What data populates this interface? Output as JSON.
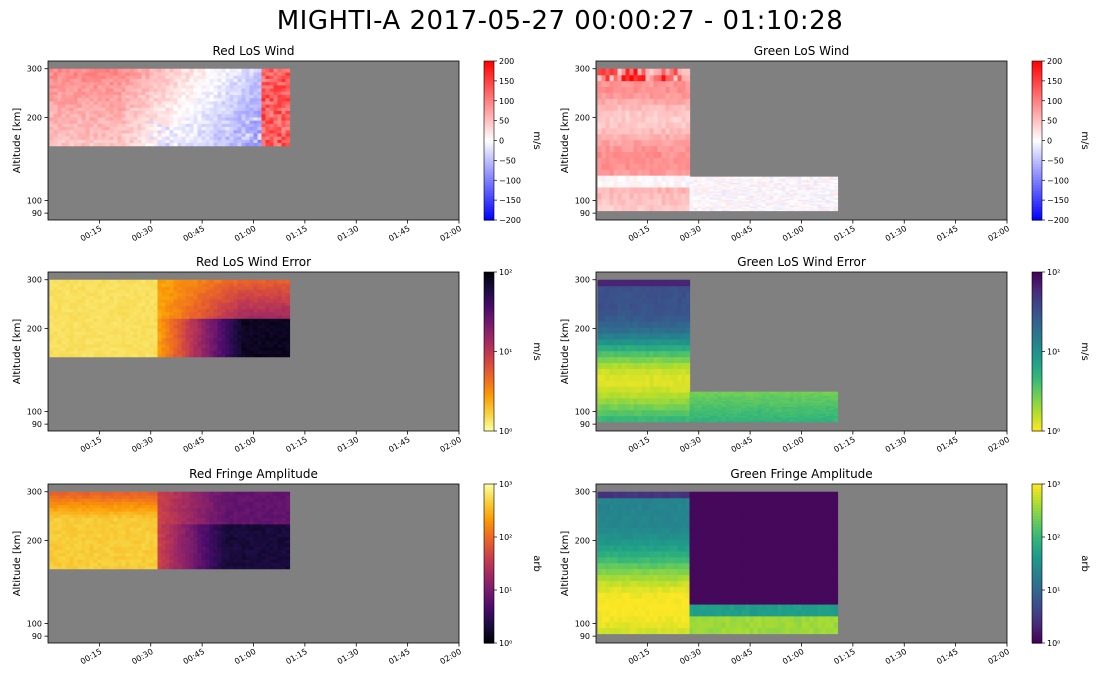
{
  "suptitle": "MIGHTI-A  2017-05-27 00:00:27 - 01:10:28",
  "chart_data": [
    {
      "type": "heatmap",
      "title": "Red LoS Wind",
      "ylabel": "Altitude [km]",
      "x_ticks": [
        "00:15",
        "00:30",
        "00:45",
        "01:00",
        "01:15",
        "01:30",
        "01:45",
        "02:00"
      ],
      "y_ticks": [
        "90",
        "100",
        "200",
        "300"
      ],
      "colorbar": {
        "cmap": "bwr",
        "scale": "linear",
        "label": "m/s",
        "ticks": [
          "200",
          "150",
          "100",
          "50",
          "0",
          "−50",
          "−100",
          "−150",
          "−200"
        ],
        "range": [
          -200,
          200
        ]
      },
      "x_range": [
        "00:00",
        "02:00"
      ],
      "y_range_km": [
        85,
        320
      ],
      "data_time_range": [
        "00:00:27",
        "01:10:28"
      ],
      "data_alt_range_km": [
        158,
        300
      ],
      "background_color": "#808080"
    },
    {
      "type": "heatmap",
      "title": "Green LoS Wind",
      "ylabel": "Altitude [km]",
      "x_ticks": [
        "00:15",
        "00:30",
        "00:45",
        "01:00",
        "01:15",
        "01:30",
        "01:45",
        "02:00"
      ],
      "y_ticks": [
        "90",
        "100",
        "200",
        "300"
      ],
      "colorbar": {
        "cmap": "bwr",
        "scale": "linear",
        "label": "m/s",
        "ticks": [
          "200",
          "150",
          "100",
          "50",
          "0",
          "−50",
          "−100",
          "−150",
          "−200"
        ],
        "range": [
          -200,
          200
        ]
      },
      "x_range": [
        "00:00",
        "02:00"
      ],
      "y_range_km": [
        85,
        320
      ],
      "data_time_range": [
        "00:00:27",
        "01:10:28"
      ],
      "data_alt_range_km": [
        92,
        300
      ],
      "background_color": "#808080"
    },
    {
      "type": "heatmap",
      "title": "Red LoS Wind Error",
      "ylabel": "Altitude [km]",
      "x_ticks": [
        "00:15",
        "00:30",
        "00:45",
        "01:00",
        "01:15",
        "01:30",
        "01:45",
        "02:00"
      ],
      "y_ticks": [
        "90",
        "100",
        "200",
        "300"
      ],
      "colorbar": {
        "cmap": "inferno_r",
        "scale": "log",
        "label": "m/s",
        "ticks": [
          "10²",
          "10¹",
          "10⁰"
        ],
        "range": [
          1,
          100
        ]
      },
      "x_range": [
        "00:00",
        "02:00"
      ],
      "y_range_km": [
        85,
        320
      ],
      "background_color": "#808080"
    },
    {
      "type": "heatmap",
      "title": "Green LoS Wind Error",
      "ylabel": "Altitude [km]",
      "x_ticks": [
        "00:15",
        "00:30",
        "00:45",
        "01:00",
        "01:15",
        "01:30",
        "01:45",
        "02:00"
      ],
      "y_ticks": [
        "90",
        "100",
        "200",
        "300"
      ],
      "colorbar": {
        "cmap": "viridis_r",
        "scale": "log",
        "label": "m/s",
        "ticks": [
          "10²",
          "10¹",
          "10⁰"
        ],
        "range": [
          1,
          100
        ]
      },
      "x_range": [
        "00:00",
        "02:00"
      ],
      "y_range_km": [
        85,
        320
      ],
      "background_color": "#808080"
    },
    {
      "type": "heatmap",
      "title": "Red Fringe Amplitude",
      "ylabel": "Altitude [km]",
      "x_ticks": [
        "00:15",
        "00:30",
        "00:45",
        "01:00",
        "01:15",
        "01:30",
        "01:45",
        "02:00"
      ],
      "y_ticks": [
        "90",
        "100",
        "200",
        "300"
      ],
      "colorbar": {
        "cmap": "inferno",
        "scale": "log",
        "label": "arb",
        "ticks": [
          "10³",
          "10²",
          "10¹",
          "10⁰"
        ],
        "range": [
          1,
          1000
        ]
      },
      "x_range": [
        "00:00",
        "02:00"
      ],
      "y_range_km": [
        85,
        320
      ],
      "background_color": "#808080"
    },
    {
      "type": "heatmap",
      "title": "Green Fringe Amplitude",
      "ylabel": "Altitude [km]",
      "x_ticks": [
        "00:15",
        "00:30",
        "00:45",
        "01:00",
        "01:15",
        "01:30",
        "01:45",
        "02:00"
      ],
      "y_ticks": [
        "90",
        "100",
        "200",
        "300"
      ],
      "colorbar": {
        "cmap": "viridis",
        "scale": "log",
        "label": "arb",
        "ticks": [
          "10³",
          "10²",
          "10¹",
          "10⁰"
        ],
        "range": [
          1,
          1000
        ]
      },
      "x_range": [
        "00:00",
        "02:00"
      ],
      "y_range_km": [
        85,
        320
      ],
      "background_color": "#808080"
    }
  ]
}
